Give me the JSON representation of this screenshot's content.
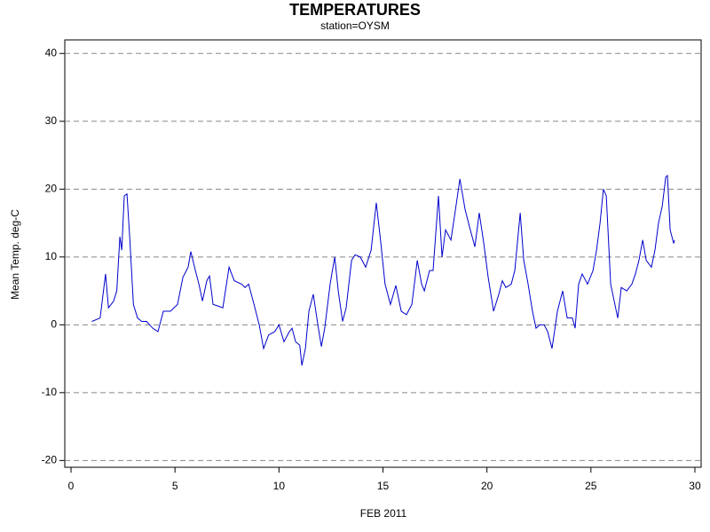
{
  "chart_data": {
    "type": "line",
    "title": "TEMPERATURES",
    "subtitle": "station=OYSM",
    "x_label": "FEB 2011",
    "y_label": "Mean Temp. deg-C",
    "xlim": [
      -0.3,
      30.3
    ],
    "ylim": [
      -21,
      42
    ],
    "xticks": [
      0,
      5,
      10,
      15,
      20,
      25,
      30
    ],
    "yticks": [
      -20,
      -10,
      0,
      10,
      20,
      30,
      40
    ],
    "grid": true,
    "series": [
      {
        "color": "#0000cc",
        "x": [
          1.0,
          1.4,
          1.66,
          1.8,
          2.05,
          2.2,
          2.35,
          2.44,
          2.56,
          2.69,
          2.82,
          3.0,
          3.2,
          3.4,
          3.63,
          3.93,
          4.18,
          4.44,
          4.78,
          5.12,
          5.38,
          5.63,
          5.76,
          5.98,
          6.15,
          6.32,
          6.53,
          6.66,
          6.83,
          7.04,
          7.3,
          7.6,
          7.85,
          8.2,
          8.37,
          8.54,
          8.8,
          9.05,
          9.26,
          9.5,
          9.8,
          10.0,
          10.24,
          10.5,
          10.63,
          10.8,
          11.0,
          11.1,
          11.27,
          11.44,
          11.65,
          11.87,
          12.04,
          12.2,
          12.46,
          12.68,
          12.85,
          13.06,
          13.23,
          13.49,
          13.66,
          13.91,
          14.17,
          14.43,
          14.68,
          14.9,
          15.1,
          15.36,
          15.62,
          15.88,
          16.13,
          16.39,
          16.65,
          16.86,
          16.99,
          17.24,
          17.41,
          17.67,
          17.84,
          18.01,
          18.27,
          18.44,
          18.7,
          18.95,
          19.2,
          19.42,
          19.63,
          19.85,
          20.06,
          20.32,
          20.57,
          20.74,
          20.91,
          21.17,
          21.34,
          21.6,
          21.77,
          21.98,
          22.19,
          22.36,
          22.54,
          22.75,
          22.92,
          23.13,
          23.39,
          23.64,
          23.86,
          24.11,
          24.24,
          24.41,
          24.58,
          24.84,
          25.1,
          25.27,
          25.44,
          25.6,
          25.74,
          25.95,
          26.12,
          26.29,
          26.46,
          26.72,
          26.97,
          27.14,
          27.31,
          27.49,
          27.66,
          27.91,
          28.08,
          28.25,
          28.43,
          28.6,
          28.68,
          28.81,
          28.98,
          29.02
        ],
        "values": [
          0.5,
          1,
          7.5,
          2.5,
          3.5,
          5,
          13,
          11,
          19,
          19.3,
          13,
          3,
          1,
          0.5,
          0.5,
          -0.5,
          -1,
          2,
          2,
          3,
          7,
          8.5,
          10.8,
          8,
          6,
          3.5,
          6.5,
          7.2,
          3,
          2.8,
          2.5,
          8.5,
          6.5,
          6,
          5.5,
          6,
          3,
          0,
          -3.5,
          -1.5,
          -1,
          0,
          -2.5,
          -1,
          -0.5,
          -2.5,
          -3,
          -6,
          -3.5,
          2,
          4.5,
          0,
          -3.2,
          -0.5,
          6,
          10,
          5,
          0.5,
          2.5,
          9.5,
          10.3,
          10,
          8.5,
          11,
          18,
          12,
          6,
          3,
          5.8,
          2,
          1.5,
          3,
          9.5,
          6,
          5,
          8,
          8,
          19,
          10,
          14,
          12.5,
          16,
          21.5,
          17,
          14,
          11.5,
          16.5,
          12,
          7,
          2,
          4.5,
          6.5,
          5.5,
          6,
          8,
          16.5,
          9.5,
          6,
          2,
          -0.5,
          0,
          0,
          -1,
          -3.5,
          2,
          5,
          1,
          1,
          -0.5,
          6,
          7.5,
          6,
          8,
          11,
          15,
          20,
          19,
          6,
          3.5,
          1,
          5.5,
          5,
          6,
          7.5,
          9.5,
          12.5,
          9.5,
          8.5,
          11,
          15,
          17.5,
          21.8,
          22,
          14,
          12,
          12.5
        ]
      }
    ]
  }
}
